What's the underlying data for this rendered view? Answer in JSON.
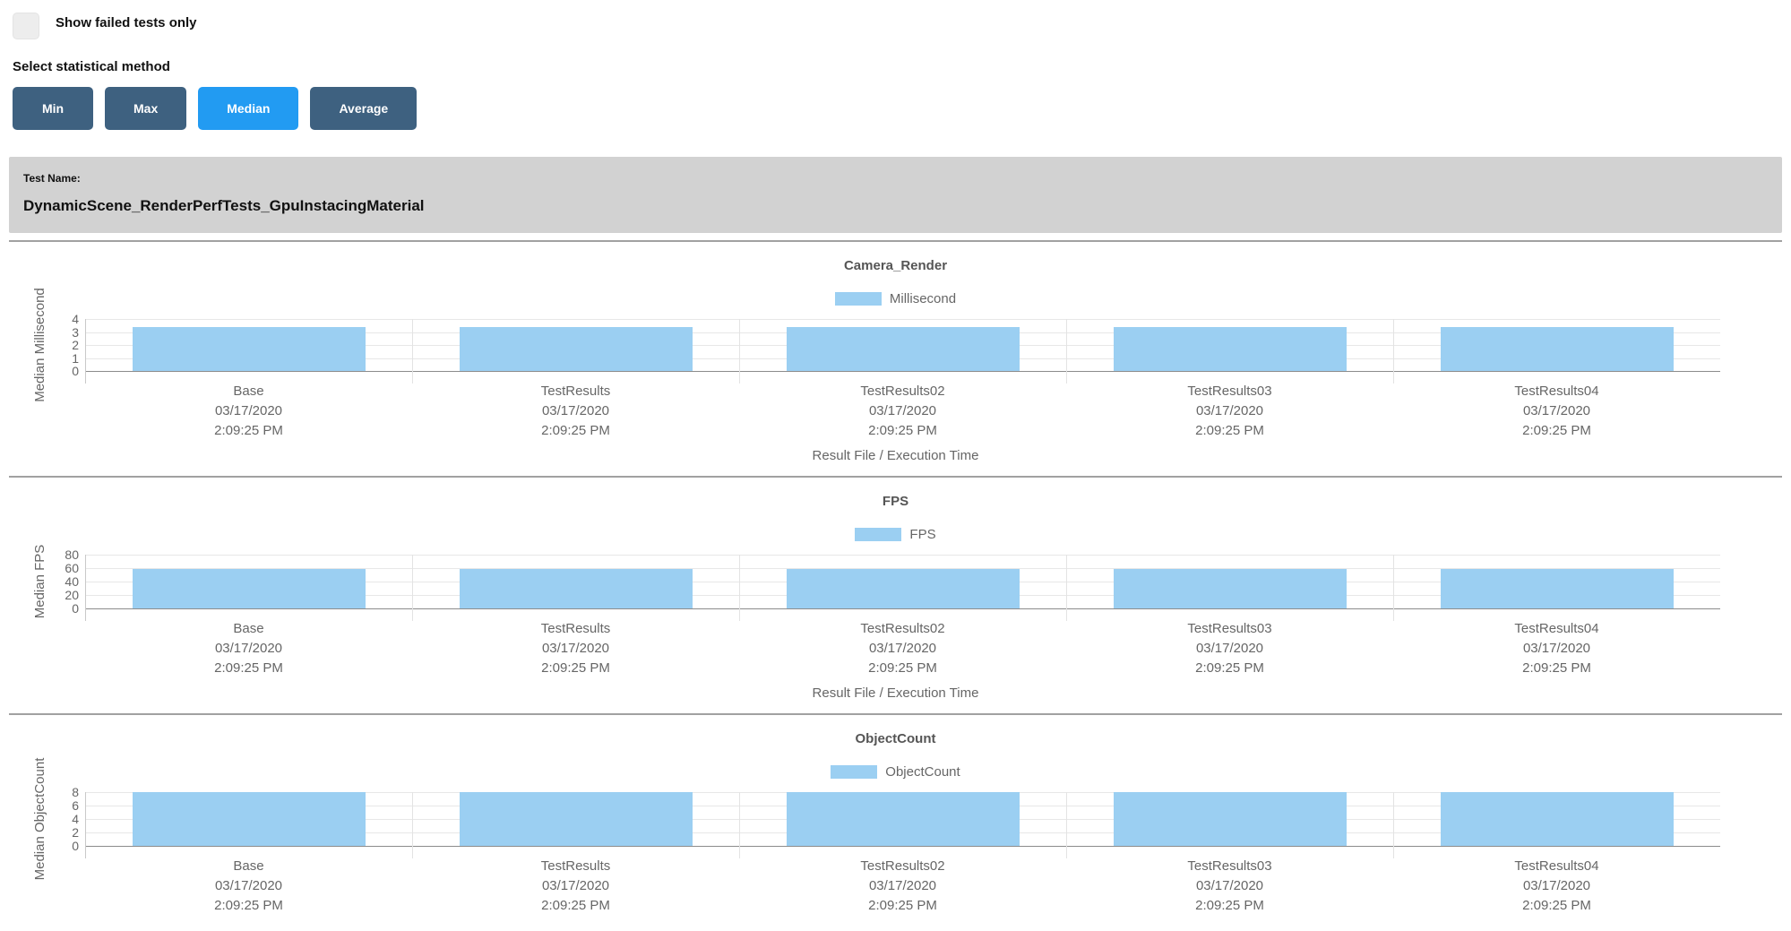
{
  "controls": {
    "show_failed_label": "Show failed tests only",
    "checkbox_checked": false,
    "select_method_label": "Select statistical method",
    "buttons": [
      {
        "label": "Min",
        "active": false
      },
      {
        "label": "Max",
        "active": false
      },
      {
        "label": "Median",
        "active": true
      },
      {
        "label": "Average",
        "active": false
      }
    ]
  },
  "test_banner": {
    "label": "Test Name:",
    "name": "DynamicScene_RenderPerfTests_GpuInstacingMaterial"
  },
  "colors": {
    "bar_fill": "#9bcff2",
    "button_active_bg": "#229bf2",
    "button_inactive_bg": "#3e6180",
    "banner_bg": "#d2d2d2",
    "grid": "#e7e7e7",
    "axis_text": "#666666"
  },
  "chart_data": [
    {
      "type": "bar",
      "title": "Camera_Render",
      "legend": "Millisecond",
      "ylabel": "Median Millisecond",
      "xlabel": "Result File / Execution Time",
      "ylim": [
        0,
        4
      ],
      "yticks": [
        0,
        1,
        2,
        3,
        4
      ],
      "categories": [
        {
          "name": "Base",
          "date": "03/17/2020",
          "time": "2:09:25 PM"
        },
        {
          "name": "TestResults",
          "date": "03/17/2020",
          "time": "2:09:25 PM"
        },
        {
          "name": "TestResults02",
          "date": "03/17/2020",
          "time": "2:09:25 PM"
        },
        {
          "name": "TestResults03",
          "date": "03/17/2020",
          "time": "2:09:25 PM"
        },
        {
          "name": "TestResults04",
          "date": "03/17/2020",
          "time": "2:09:25 PM"
        }
      ],
      "values": [
        3.4,
        3.4,
        3.4,
        3.4,
        3.4
      ]
    },
    {
      "type": "bar",
      "title": "FPS",
      "legend": "FPS",
      "ylabel": "Median FPS",
      "xlabel": "Result File / Execution Time",
      "ylim": [
        0,
        80
      ],
      "yticks": [
        0,
        20,
        40,
        60,
        80
      ],
      "categories": [
        {
          "name": "Base",
          "date": "03/17/2020",
          "time": "2:09:25 PM"
        },
        {
          "name": "TestResults",
          "date": "03/17/2020",
          "time": "2:09:25 PM"
        },
        {
          "name": "TestResults02",
          "date": "03/17/2020",
          "time": "2:09:25 PM"
        },
        {
          "name": "TestResults03",
          "date": "03/17/2020",
          "time": "2:09:25 PM"
        },
        {
          "name": "TestResults04",
          "date": "03/17/2020",
          "time": "2:09:25 PM"
        }
      ],
      "values": [
        59,
        59,
        59,
        59,
        59
      ]
    },
    {
      "type": "bar",
      "title": "ObjectCount",
      "legend": "ObjectCount",
      "ylabel": "Median ObjectCount",
      "xlabel": "",
      "ylim": [
        0,
        8
      ],
      "yticks": [
        0,
        2,
        4,
        6,
        8
      ],
      "categories": [
        {
          "name": "Base",
          "date": "03/17/2020",
          "time": "2:09:25 PM"
        },
        {
          "name": "TestResults",
          "date": "03/17/2020",
          "time": "2:09:25 PM"
        },
        {
          "name": "TestResults02",
          "date": "03/17/2020",
          "time": "2:09:25 PM"
        },
        {
          "name": "TestResults03",
          "date": "03/17/2020",
          "time": "2:09:25 PM"
        },
        {
          "name": "TestResults04",
          "date": "03/17/2020",
          "time": "2:09:25 PM"
        }
      ],
      "values": [
        8,
        8,
        8,
        8,
        8
      ]
    }
  ]
}
